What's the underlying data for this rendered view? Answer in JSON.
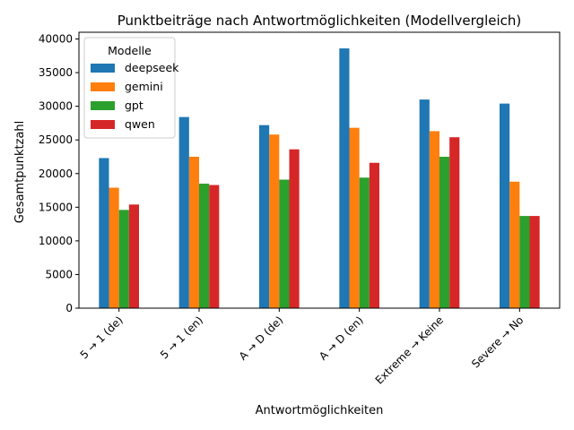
{
  "chart_data": {
    "type": "bar",
    "title": "Punktbeiträge nach Antwortmöglichkeiten (Modellvergleich)",
    "xlabel": "Antwortmöglichkeiten",
    "ylabel": "Gesamtpunktzahl",
    "categories": [
      "5 → 1 (de)",
      "5 → 1 (en)",
      "A → D (de)",
      "A → D (en)",
      "Extreme → Keine",
      "Severe → No"
    ],
    "ylim": [
      0,
      41000
    ],
    "yticks": [
      0,
      5000,
      10000,
      15000,
      20000,
      25000,
      30000,
      35000,
      40000
    ],
    "grid": false,
    "legend": {
      "title": "Modelle",
      "placement": "top-left"
    },
    "series": [
      {
        "name": "deepseek",
        "color": "#1f77b4",
        "values": [
          22300,
          28400,
          27200,
          38600,
          31000,
          30400
        ]
      },
      {
        "name": "gemini",
        "color": "#ff7f0e",
        "values": [
          17900,
          22500,
          25800,
          26800,
          26300,
          18800
        ]
      },
      {
        "name": "gpt",
        "color": "#2ca02c",
        "values": [
          14600,
          18500,
          19100,
          19400,
          22500,
          13700
        ]
      },
      {
        "name": "qwen",
        "color": "#d62728",
        "values": [
          15400,
          18300,
          23600,
          21600,
          25400,
          13700
        ]
      }
    ]
  }
}
